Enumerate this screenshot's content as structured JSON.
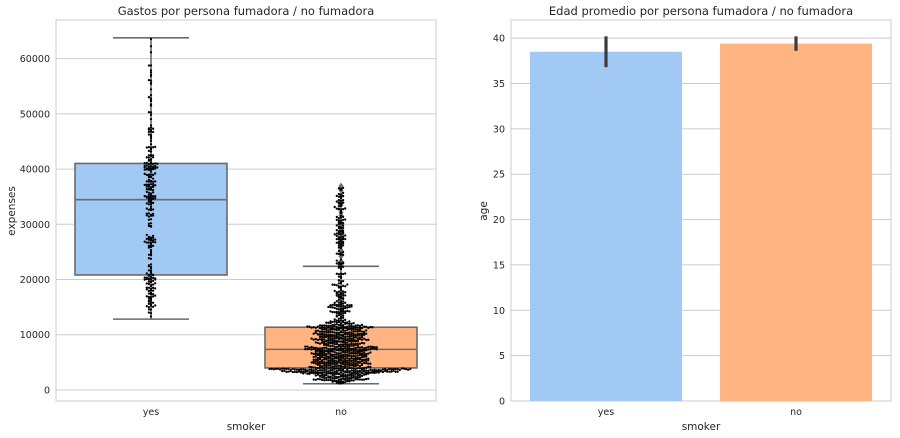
{
  "chart_data": [
    {
      "type": "box",
      "title": "Gastos por persona fumadora / no fumadora",
      "xlabel": "smoker",
      "ylabel": "expenses",
      "categories": [
        "yes",
        "no"
      ],
      "ylim": [
        -2000,
        67000
      ],
      "yticks": [
        0,
        10000,
        20000,
        30000,
        40000,
        50000,
        60000
      ],
      "grid": "horizontal",
      "colors": [
        "#a1c9f4",
        "#ffb482"
      ],
      "box_stats": [
        {
          "category": "yes",
          "whisker_low": 12830,
          "q1": 20830,
          "median": 34460,
          "q3": 41020,
          "whisker_high": 63770,
          "fliers": []
        },
        {
          "category": "no",
          "whisker_low": 1122,
          "q1": 3990,
          "median": 7350,
          "q3": 11360,
          "whisker_high": 22400,
          "fliers": [
            22630,
            23290,
            24210,
            24670,
            25330,
            26120,
            26890,
            27440,
            28290,
            29140,
            30000,
            30260,
            31620,
            32110,
            33480,
            33900,
            35160,
            36210,
            36580,
            36910
          ]
        }
      ],
      "swarm_overlay": {
        "color": "#000000",
        "approx_points": [
          274,
          1064
        ]
      }
    },
    {
      "type": "bar",
      "title": "Edad promedio por persona fumadora / no fumadora",
      "xlabel": "smoker",
      "ylabel": "age",
      "categories": [
        "yes",
        "no"
      ],
      "values": [
        38.5,
        39.4
      ],
      "ci": [
        [
          36.8,
          40.2
        ],
        [
          38.6,
          40.2
        ]
      ],
      "ylim": [
        0,
        42
      ],
      "yticks": [
        0,
        5,
        10,
        15,
        20,
        25,
        30,
        35,
        40
      ],
      "grid": "horizontal",
      "colors": [
        "#a1c9f4",
        "#ffb482"
      ]
    }
  ]
}
